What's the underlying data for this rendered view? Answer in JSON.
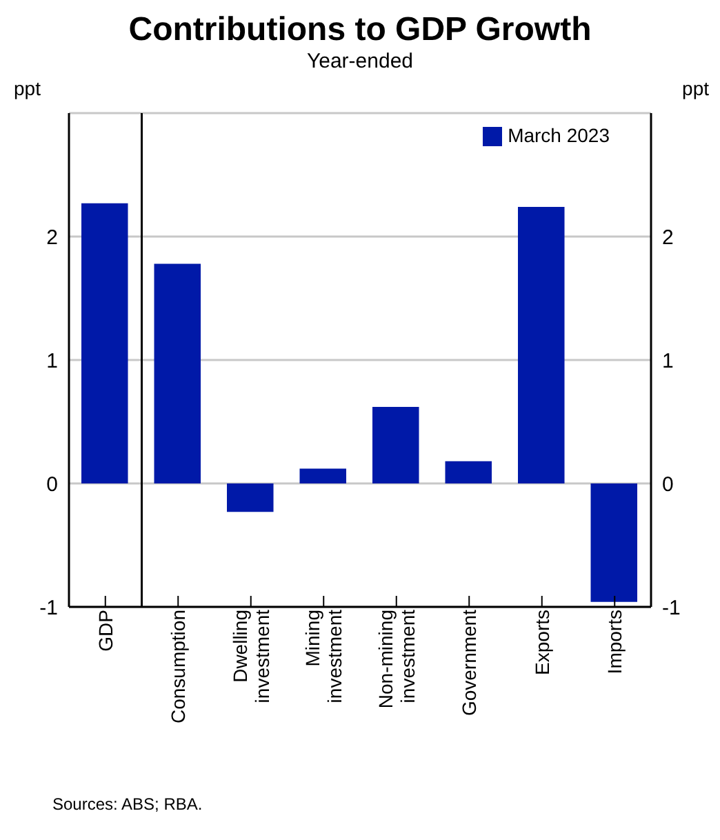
{
  "chart_data": {
    "type": "bar",
    "title": "Contributions to GDP Growth",
    "subtitle": "Year-ended",
    "categories": [
      "GDP",
      "Consumption",
      "Dwelling investment",
      "Mining investment",
      "Non-mining investment",
      "Government",
      "Exports",
      "Imports"
    ],
    "series": [
      {
        "name": "March 2023",
        "color": "#0019a8",
        "values": [
          2.27,
          1.78,
          -0.23,
          0.12,
          0.62,
          0.18,
          2.24,
          -0.96
        ]
      }
    ],
    "ylabel": "ppt",
    "y2label": "ppt",
    "ylim": [
      -1,
      3
    ],
    "yticks": [
      -1,
      0,
      1,
      2
    ],
    "y2lim": [
      -1,
      3
    ],
    "y2ticks": [
      -1,
      0,
      1,
      2
    ],
    "ref_lines": [
      {
        "axis": "x",
        "value": "GDP",
        "color": "#000000"
      }
    ],
    "grid": "y",
    "legend": "top right",
    "annotations": [
      "Sources: ABS; RBA."
    ]
  }
}
